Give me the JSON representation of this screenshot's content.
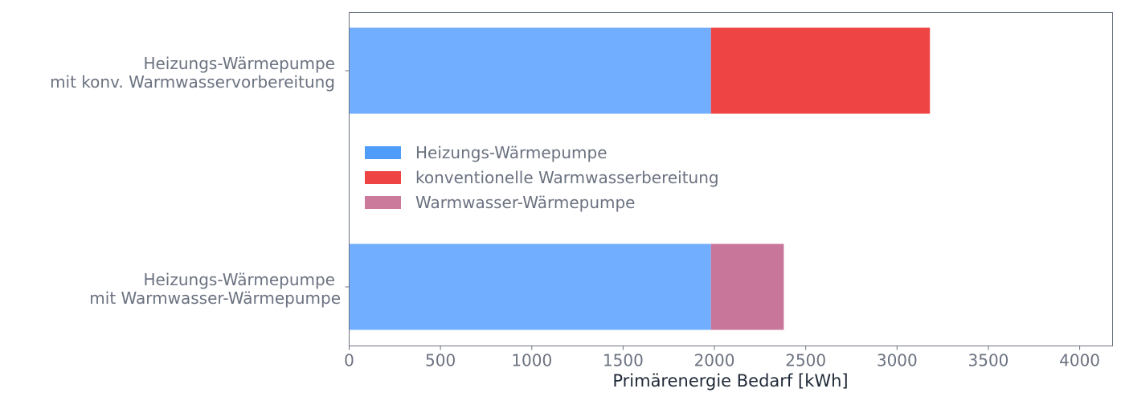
{
  "chart_data": {
    "type": "bar",
    "orientation": "horizontal",
    "stacked": true,
    "categories": [
      "Heizungs-Wärmepumpe\nmit konv. Warmwasservorbereitung",
      "Heizungs-Wärmepumpe\nmit Warmwasser-Wärmepumpe"
    ],
    "series": [
      {
        "name": "Heizungs-Wärmepumpe",
        "values": [
          1981,
          1981
        ],
        "color": "#72aeff",
        "legend_color": "#4f9cf9"
      },
      {
        "name": "konventionelle Warmwasserbereitung",
        "values": [
          1199,
          0
        ],
        "color": "#ef4444",
        "legend_color": "#ef4444"
      },
      {
        "name": "Warmwasser-Wärmepumpe",
        "values": [
          0,
          399
        ],
        "color": "#c9769b",
        "legend_color": "#cb7a9c"
      }
    ],
    "xlabel": "Primärenergie Bedarf [kWh]",
    "ylabel": "",
    "xlim": [
      0,
      4180
    ],
    "xticks": [
      0,
      500,
      1000,
      1500,
      2000,
      2500,
      3000,
      3500,
      4000
    ],
    "grid": false,
    "legend_position": "center-left"
  }
}
